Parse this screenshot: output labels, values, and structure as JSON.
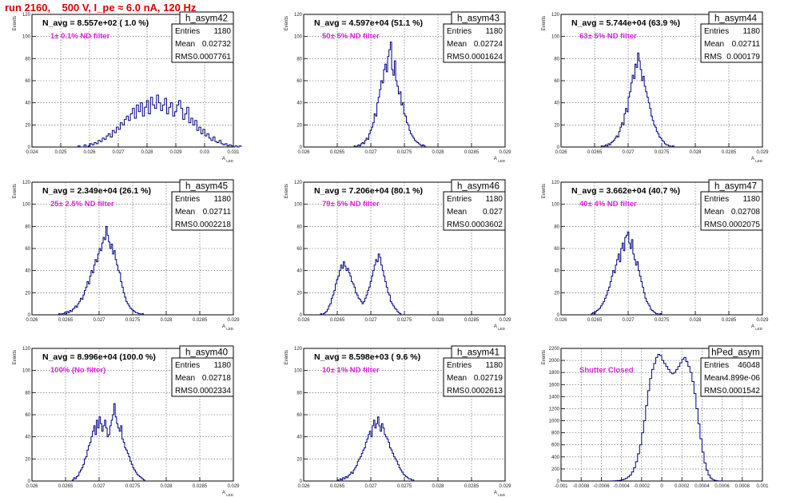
{
  "header": {
    "title": "run 2160,    500 V, I_pe ≈ 6.0 nA, 120 Hz"
  },
  "chart_data": [
    {
      "type": "bar",
      "name": "h_asym42",
      "navg": "N_avg = 8.557e+02 ( 1.0 %)",
      "filter": "1± 0.1% ND filter",
      "stats": [
        [
          "Entries",
          "1180"
        ],
        [
          "Mean",
          "0.02732"
        ],
        [
          "RMS",
          "0.0007761"
        ]
      ],
      "xlabel": "A_LED",
      "ylabel": "Events",
      "xlim": [
        0.024,
        0.031
      ],
      "ylim": [
        0,
        120
      ],
      "xticks": [
        "0.024",
        "0.025",
        "0.026",
        "0.027",
        "0.028",
        "0.029",
        "0.03",
        "0.031"
      ],
      "yticks": [
        "0",
        "20",
        "40",
        "60",
        "80",
        "100",
        "120"
      ],
      "bin_start": 0.0256,
      "bin_width": 7e-05,
      "values": [
        1,
        0,
        0,
        2,
        0,
        1,
        3,
        2,
        4,
        3,
        6,
        5,
        8,
        7,
        10,
        12,
        9,
        15,
        13,
        18,
        16,
        22,
        20,
        25,
        28,
        24,
        30,
        35,
        26,
        38,
        32,
        40,
        28,
        36,
        42,
        30,
        45,
        38,
        35,
        47,
        40,
        33,
        38,
        44,
        30,
        36,
        40,
        28,
        32,
        38,
        42,
        35,
        25,
        30,
        36,
        22,
        26,
        20,
        24,
        15,
        18,
        12,
        16,
        10,
        12,
        8,
        6,
        9,
        5,
        4,
        6,
        3,
        2,
        3,
        1,
        2,
        1,
        0,
        1,
        0,
        1
      ]
    },
    {
      "type": "bar",
      "name": "h_asym43",
      "navg": "N_avg = 4.597e+04 (51.1 %)",
      "filter": "50± 5% ND filter",
      "stats": [
        [
          "Entries",
          "1180"
        ],
        [
          "Mean",
          "0.02724"
        ],
        [
          "RMS",
          "0.0001624"
        ]
      ],
      "xlabel": "A_LED",
      "ylabel": "Events",
      "xlim": [
        0.026,
        0.029
      ],
      "ylim": [
        0,
        120
      ],
      "xticks": [
        "0.026",
        "0.0265",
        "0.027",
        "0.0275",
        "0.028",
        "0.0285",
        "0.029"
      ],
      "yticks": [
        "0",
        "20",
        "40",
        "60",
        "80",
        "100",
        "120"
      ],
      "bin_start": 0.02675,
      "bin_width": 2e-05,
      "values": [
        1,
        0,
        1,
        2,
        1,
        3,
        4,
        3,
        6,
        8,
        7,
        12,
        15,
        18,
        22,
        30,
        28,
        40,
        45,
        52,
        60,
        58,
        70,
        75,
        68,
        82,
        88,
        95,
        70,
        65,
        78,
        60,
        55,
        48,
        50,
        38,
        40,
        30,
        28,
        22,
        20,
        15,
        12,
        10,
        8,
        6,
        5,
        4,
        3,
        2,
        1,
        2,
        1
      ]
    },
    {
      "type": "bar",
      "name": "h_asym44",
      "navg": "N_avg = 5.744e+04 (63.9 %)",
      "filter": "63± 5% ND filter",
      "stats": [
        [
          "Entries",
          "1180"
        ],
        [
          "Mean",
          "0.02711"
        ],
        [
          "RMS",
          "0.000179"
        ]
      ],
      "xlabel": "A_LED",
      "ylabel": "Events",
      "xlim": [
        0.026,
        0.029
      ],
      "ylim": [
        0,
        120
      ],
      "xticks": [
        "0.026",
        "0.0265",
        "0.027",
        "0.0275",
        "0.028",
        "0.0285",
        "0.029"
      ],
      "yticks": [
        "0",
        "20",
        "40",
        "60",
        "80",
        "100",
        "120"
      ],
      "bin_start": 0.0266,
      "bin_width": 2e-05,
      "values": [
        1,
        0,
        1,
        2,
        1,
        3,
        2,
        4,
        5,
        6,
        8,
        10,
        9,
        14,
        18,
        22,
        20,
        30,
        35,
        32,
        45,
        50,
        58,
        65,
        62,
        75,
        72,
        85,
        78,
        70,
        60,
        64,
        55,
        50,
        45,
        40,
        35,
        28,
        24,
        20,
        18,
        14,
        12,
        9,
        8,
        6,
        5,
        3,
        2,
        2,
        1,
        1,
        0,
        1
      ]
    },
    {
      "type": "bar",
      "name": "h_asym45",
      "navg": "N_avg = 2.349e+04 (26.1 %)",
      "filter": "25± 2.5% ND filter",
      "stats": [
        [
          "Entries",
          "1180"
        ],
        [
          "Mean",
          "0.02711"
        ],
        [
          "RMS",
          "0.0002218"
        ]
      ],
      "xlabel": "A_LED",
      "ylabel": "Events",
      "xlim": [
        0.026,
        0.029
      ],
      "ylim": [
        0,
        120
      ],
      "xticks": [
        "0.026",
        "0.0265",
        "0.027",
        "0.0275",
        "0.028",
        "0.0285",
        "0.029"
      ],
      "yticks": [
        "0",
        "20",
        "40",
        "60",
        "80",
        "100",
        "120"
      ],
      "bin_start": 0.0264,
      "bin_width": 2e-05,
      "values": [
        1,
        0,
        1,
        1,
        2,
        1,
        3,
        2,
        4,
        3,
        5,
        6,
        8,
        7,
        10,
        12,
        15,
        14,
        18,
        22,
        25,
        30,
        28,
        35,
        40,
        38,
        45,
        50,
        48,
        55,
        60,
        58,
        65,
        70,
        68,
        80,
        72,
        66,
        60,
        64,
        55,
        58,
        50,
        45,
        40,
        38,
        30,
        25,
        20,
        16,
        12,
        10,
        8,
        6,
        5,
        4,
        3,
        2,
        2,
        1,
        1,
        0,
        1
      ]
    },
    {
      "type": "bar",
      "name": "h_asym46",
      "navg": "N_avg = 7.206e+04 (80.1 %)",
      "filter": "79± 5% ND filter",
      "stats": [
        [
          "Entries",
          "1180"
        ],
        [
          "Mean",
          "0.027"
        ],
        [
          "RMS",
          "0.0003602"
        ]
      ],
      "xlabel": "A_LED",
      "ylabel": "Events",
      "xlim": [
        0.026,
        0.029
      ],
      "ylim": [
        0,
        120
      ],
      "xticks": [
        "0.026",
        "0.0265",
        "0.027",
        "0.0275",
        "0.028",
        "0.0285",
        "0.029"
      ],
      "yticks": [
        "0",
        "20",
        "40",
        "60",
        "80",
        "100",
        "120"
      ],
      "bin_start": 0.02625,
      "bin_width": 2e-05,
      "values": [
        1,
        0,
        1,
        2,
        3,
        5,
        8,
        10,
        15,
        18,
        22,
        28,
        32,
        35,
        40,
        45,
        42,
        48,
        44,
        40,
        42,
        38,
        35,
        30,
        28,
        25,
        20,
        18,
        15,
        14,
        12,
        10,
        12,
        15,
        18,
        22,
        25,
        30,
        35,
        40,
        45,
        50,
        48,
        55,
        52,
        45,
        40,
        35,
        30,
        25,
        20,
        18,
        12,
        10,
        8,
        6,
        5,
        3,
        2,
        1
      ]
    },
    {
      "type": "bar",
      "name": "h_asym47",
      "navg": "N_avg = 3.662e+04 (40.7 %)",
      "filter": "40± 4% ND filter",
      "stats": [
        [
          "Entries",
          "1180"
        ],
        [
          "Mean",
          "0.02708"
        ],
        [
          "RMS",
          "0.0002075"
        ]
      ],
      "xlabel": "A_LED",
      "ylabel": "Events",
      "xlim": [
        0.026,
        0.029
      ],
      "ylim": [
        0,
        120
      ],
      "xticks": [
        "0.026",
        "0.0265",
        "0.027",
        "0.0275",
        "0.028",
        "0.0285",
        "0.029"
      ],
      "yticks": [
        "0",
        "20",
        "40",
        "60",
        "80",
        "100",
        "120"
      ],
      "bin_start": 0.02645,
      "bin_width": 2e-05,
      "values": [
        1,
        2,
        1,
        3,
        4,
        5,
        6,
        8,
        10,
        12,
        15,
        18,
        22,
        25,
        30,
        35,
        40,
        38,
        45,
        50,
        55,
        48,
        60,
        65,
        58,
        70,
        72,
        75,
        65,
        60,
        68,
        55,
        50,
        45,
        48,
        40,
        35,
        30,
        25,
        20,
        15,
        12,
        10,
        8,
        5,
        4,
        3,
        2,
        1,
        1,
        0,
        1
      ]
    },
    {
      "type": "bar",
      "name": "h_asym40",
      "navg": "N_avg = 8.996e+04 (100.0 %)",
      "filter": "100% (No filter)",
      "stats": [
        [
          "Entries",
          "1180"
        ],
        [
          "Mean",
          "0.02718"
        ],
        [
          "RMS",
          "0.0002334"
        ]
      ],
      "xlabel": "A_LED",
      "ylabel": "Events",
      "xlim": [
        0.026,
        0.029
      ],
      "ylim": [
        0,
        120
      ],
      "xticks": [
        "0.026",
        "0.0265",
        "0.027",
        "0.0275",
        "0.028",
        "0.0285",
        "0.029"
      ],
      "yticks": [
        "0",
        "20",
        "40",
        "60",
        "80",
        "100",
        "120"
      ],
      "bin_start": 0.0266,
      "bin_width": 2e-05,
      "values": [
        1,
        3,
        2,
        4,
        5,
        8,
        10,
        12,
        15,
        20,
        22,
        28,
        32,
        35,
        40,
        45,
        50,
        42,
        55,
        48,
        58,
        52,
        45,
        50,
        55,
        48,
        40,
        42,
        50,
        55,
        60,
        70,
        58,
        52,
        48,
        45,
        50,
        38,
        35,
        30,
        28,
        25,
        22,
        18,
        15,
        12,
        10,
        8,
        6,
        5,
        4,
        3,
        2,
        1
      ]
    },
    {
      "type": "bar",
      "name": "h_asym41",
      "navg": "N_avg = 8.598e+03 ( 9.6 %)",
      "filter": "10± 1% ND filter",
      "stats": [
        [
          "Entries",
          "1180"
        ],
        [
          "Mean",
          "0.02719"
        ],
        [
          "RMS",
          "0.0002613"
        ]
      ],
      "xlabel": "A_LED",
      "ylabel": "Events",
      "xlim": [
        0.026,
        0.029
      ],
      "ylim": [
        0,
        120
      ],
      "xticks": [
        "0.026",
        "0.0265",
        "0.027",
        "0.0275",
        "0.028",
        "0.0285",
        "0.029"
      ],
      "yticks": [
        "0",
        "20",
        "40",
        "60",
        "80",
        "100",
        "120"
      ],
      "bin_start": 0.0265,
      "bin_width": 2e-05,
      "values": [
        1,
        0,
        2,
        1,
        3,
        2,
        4,
        3,
        5,
        6,
        8,
        7,
        10,
        12,
        14,
        18,
        20,
        22,
        25,
        28,
        30,
        35,
        38,
        42,
        45,
        40,
        50,
        55,
        48,
        52,
        58,
        50,
        45,
        52,
        48,
        42,
        40,
        38,
        35,
        30,
        28,
        25,
        22,
        20,
        18,
        15,
        12,
        10,
        8,
        6,
        5,
        4,
        3,
        2,
        2,
        1,
        1
      ]
    },
    {
      "type": "bar",
      "name": "hPed_asym",
      "navg": "",
      "filter": "Shutter Closed",
      "stats": [
        [
          "Entries",
          "46048"
        ],
        [
          "Mean",
          "-4.899e-06"
        ],
        [
          "RMS",
          "0.0001542"
        ]
      ],
      "xlabel": "",
      "ylabel": "Events",
      "xlim": [
        -0.001,
        0.001
      ],
      "ylim": [
        0,
        2200
      ],
      "xticks": [
        "-0.001",
        "-0.0008",
        "-0.0006",
        "-0.0004",
        "-0.0002",
        "0",
        "0.0002",
        "0.0004",
        "0.0006",
        "0.0008",
        "0.001"
      ],
      "yticks": [
        "0",
        "200",
        "400",
        "600",
        "800",
        "1000",
        "1200",
        "1400",
        "1600",
        "1800",
        "2000",
        "2200"
      ],
      "bin_start": -0.0005,
      "bin_width": 2e-05,
      "values": [
        2,
        3,
        5,
        8,
        12,
        20,
        30,
        45,
        70,
        100,
        150,
        220,
        320,
        450,
        600,
        800,
        1000,
        1250,
        1500,
        1700,
        1850,
        1950,
        2050,
        2100,
        2080,
        2000,
        1950,
        1900,
        1850,
        1800,
        1780,
        1800,
        1850,
        1900,
        1960,
        2020,
        2050,
        1980,
        1900,
        1800,
        1650,
        1450,
        1200,
        950,
        700,
        480,
        300,
        180,
        100,
        50,
        25,
        12,
        5,
        2,
        1
      ]
    }
  ]
}
